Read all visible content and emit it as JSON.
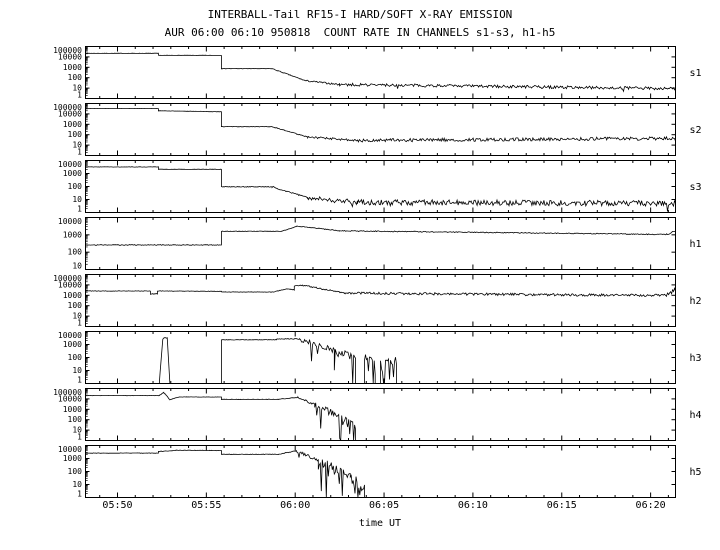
{
  "title": {
    "line1": "INTERBALL-Tail RF15-I HARD/SOFT X-RAY EMISSION",
    "line2": "AUR 06:00 06:10 950818  COUNT RATE IN CHANNELS s1-s3, h1-h5"
  },
  "chart_data": {
    "type": "line",
    "title": "INTERBALL-Tail RF15-I HARD/SOFT X-RAY EMISSION",
    "subtitle": "AUR 06:00 06:10 950818  COUNT RATE IN CHANNELS s1-s3, h1-h5",
    "xlabel": "time UT",
    "y_scale": "log10",
    "colors": {
      "line": "#000000",
      "background": "#ffffff",
      "text": "#000000"
    },
    "x_axis": {
      "min_minutes": 348.2,
      "max_minutes": 381.4,
      "major_tick_minutes": 5,
      "minor_tick_minutes": 1,
      "ticks": [
        {
          "minute": 350,
          "label": "05:50"
        },
        {
          "minute": 355,
          "label": "05:55"
        },
        {
          "minute": 360,
          "label": "06:00"
        },
        {
          "minute": 365,
          "label": "06:05"
        },
        {
          "minute": 370,
          "label": "06:10"
        },
        {
          "minute": 375,
          "label": "06:15"
        },
        {
          "minute": 380,
          "label": "06:20"
        }
      ]
    },
    "segment_format": "[t0_min, t1_min, count_rate_start, count_rate_end, noise_log10, dropout_prob, dropout_depth_log10]",
    "panels": [
      {
        "channel": "s1",
        "ymax_exp": 5,
        "ymin_exp": 0,
        "ylabels": [
          "100000",
          "10000",
          "1000",
          "100",
          "10",
          "1"
        ],
        "segments": [
          [
            348.2,
            352.3,
            22000,
            22000,
            0.015,
            0,
            0
          ],
          [
            352.3,
            355.85,
            14000,
            14000,
            0.015,
            0,
            0
          ],
          [
            355.85,
            358.7,
            750,
            740,
            0.02,
            0,
            0
          ],
          [
            358.7,
            360.6,
            740,
            50,
            0.04,
            0,
            0
          ],
          [
            360.6,
            362.5,
            50,
            22,
            0.08,
            0,
            0
          ],
          [
            362.5,
            381.4,
            22,
            9,
            0.14,
            0.01,
            0.5
          ]
        ]
      },
      {
        "channel": "s2",
        "ymax_exp": 5,
        "ymin_exp": 0,
        "ylabels": [
          "100000",
          "10000",
          "1000",
          "100",
          "10",
          "1"
        ],
        "segments": [
          [
            348.2,
            352.3,
            33000,
            33000,
            0.012,
            0,
            0
          ],
          [
            352.3,
            355.85,
            20000,
            16000,
            0.012,
            0,
            0
          ],
          [
            355.85,
            358.7,
            600,
            590,
            0.02,
            0,
            0
          ],
          [
            358.7,
            360.7,
            590,
            60,
            0.04,
            0,
            0
          ],
          [
            360.7,
            363.5,
            60,
            28,
            0.1,
            0,
            0
          ],
          [
            363.5,
            381.4,
            28,
            45,
            0.16,
            0.01,
            0.4
          ]
        ]
      },
      {
        "channel": "s3",
        "ymax_exp": 4,
        "ymin_exp": 0,
        "ylabels": [
          "10000",
          "1000",
          "100",
          "10",
          "1"
        ],
        "segments": [
          [
            348.2,
            352.3,
            3200,
            3200,
            0.012,
            0,
            0
          ],
          [
            352.3,
            355.85,
            2100,
            2100,
            0.012,
            0,
            0
          ],
          [
            355.85,
            358.7,
            95,
            95,
            0.03,
            0,
            0
          ],
          [
            358.7,
            360.7,
            95,
            14,
            0.06,
            0,
            0
          ],
          [
            360.7,
            363.5,
            14,
            6,
            0.18,
            0.02,
            0.6
          ],
          [
            363.5,
            381.4,
            6,
            5,
            0.22,
            0.03,
            0.8
          ]
        ]
      },
      {
        "channel": "h1",
        "ymax_exp": 4,
        "ymin_exp": 1,
        "ylabels": [
          "10000",
          "1000",
          "100",
          "10"
        ],
        "segments": [
          [
            348.2,
            355.85,
            260,
            260,
            0.02,
            0,
            0
          ],
          [
            355.85,
            359.25,
            1600,
            1600,
            0.015,
            0,
            0
          ],
          [
            359.25,
            360.1,
            1600,
            3200,
            0.02,
            0,
            0
          ],
          [
            360.1,
            362.5,
            3200,
            1700,
            0.02,
            0,
            0
          ],
          [
            362.5,
            380.9,
            1700,
            1050,
            0.025,
            0,
            0
          ],
          [
            380.9,
            381.4,
            1050,
            1700,
            0.05,
            0,
            0
          ]
        ]
      },
      {
        "channel": "h2",
        "ymax_exp": 5,
        "ymin_exp": 0,
        "ylabels": [
          "100000",
          "10000",
          "1000",
          "100",
          "10",
          "1"
        ],
        "segments": [
          [
            348.2,
            351.85,
            2600,
            2600,
            0.02,
            0,
            0
          ],
          [
            351.85,
            352.25,
            1300,
            1400,
            0.03,
            0,
            0
          ],
          [
            352.25,
            355.85,
            2600,
            2400,
            0.02,
            0,
            0
          ],
          [
            355.85,
            358.75,
            2100,
            2050,
            0.02,
            0,
            0
          ],
          [
            358.75,
            359.55,
            2050,
            4200,
            0.03,
            0,
            0
          ],
          [
            359.55,
            359.95,
            4200,
            3400,
            0.03,
            0,
            0
          ],
          [
            359.95,
            360.4,
            8500,
            9500,
            0.05,
            0,
            0
          ],
          [
            360.4,
            362.8,
            9500,
            1600,
            0.07,
            0,
            0
          ],
          [
            362.8,
            380.9,
            1600,
            950,
            0.12,
            0.01,
            0.4
          ],
          [
            380.9,
            381.4,
            950,
            3200,
            0.25,
            0,
            0
          ]
        ]
      },
      {
        "channel": "h3",
        "ymax_exp": 4,
        "ymin_exp": 0,
        "ylabels": [
          "10000",
          "1000",
          "100",
          "10",
          "1"
        ],
        "segments": [
          [
            348.2,
            352.35,
            1,
            1,
            0,
            0,
            0
          ],
          [
            352.35,
            352.55,
            1,
            2600,
            0,
            0,
            0
          ],
          [
            352.55,
            352.8,
            2600,
            3600,
            0.06,
            0,
            0
          ],
          [
            352.8,
            352.95,
            3600,
            1,
            0,
            0,
            0
          ],
          [
            352.95,
            355.85,
            1,
            1,
            0,
            0,
            0
          ],
          [
            355.85,
            358.95,
            2300,
            2300,
            0.02,
            0,
            0
          ],
          [
            358.95,
            360.25,
            2700,
            2700,
            0.03,
            0,
            0
          ],
          [
            360.25,
            362.2,
            2700,
            350,
            0.2,
            0.1,
            1.5
          ],
          [
            362.2,
            363.4,
            350,
            90,
            0.3,
            0.25,
            2.5
          ],
          [
            363.4,
            363.9,
            1,
            1,
            0,
            0,
            0
          ],
          [
            363.9,
            364.5,
            120,
            70,
            0.35,
            0.3,
            2.5
          ],
          [
            364.5,
            364.8,
            1,
            1,
            0,
            0,
            0
          ],
          [
            364.8,
            365.7,
            90,
            50,
            0.35,
            0.3,
            2.5
          ],
          [
            365.7,
            381.4,
            1,
            1,
            0,
            0,
            0
          ]
        ]
      },
      {
        "channel": "h4",
        "ymax_exp": 5,
        "ymin_exp": 0,
        "ylabels": [
          "100000",
          "10000",
          "1000",
          "100",
          "10",
          "1"
        ],
        "segments": [
          [
            348.2,
            352.35,
            21000,
            21000,
            0.012,
            0,
            0
          ],
          [
            352.35,
            352.6,
            21000,
            42000,
            0.03,
            0,
            0
          ],
          [
            352.6,
            352.95,
            42000,
            8500,
            0.04,
            0,
            0
          ],
          [
            352.95,
            353.5,
            8500,
            15500,
            0.02,
            0,
            0
          ],
          [
            353.5,
            355.85,
            15500,
            15000,
            0.012,
            0,
            0
          ],
          [
            355.85,
            359.05,
            9000,
            9000,
            0.02,
            0,
            0
          ],
          [
            359.05,
            360.15,
            9000,
            14000,
            0.03,
            0,
            0
          ],
          [
            360.15,
            361.1,
            14000,
            2800,
            0.1,
            0.05,
            1
          ],
          [
            361.1,
            362.9,
            2800,
            90,
            0.35,
            0.2,
            2.5
          ],
          [
            362.9,
            363.4,
            60,
            25,
            0.45,
            0.3,
            2
          ],
          [
            363.4,
            381.4,
            1,
            1,
            0,
            0,
            0
          ]
        ]
      },
      {
        "channel": "h5",
        "ymax_exp": 4,
        "ymin_exp": 0,
        "ylabels": [
          "10000",
          "1000",
          "100",
          "10",
          "1"
        ],
        "segments": [
          [
            348.2,
            352.3,
            2600,
            2600,
            0.015,
            0,
            0
          ],
          [
            352.3,
            353.3,
            3400,
            4300,
            0.025,
            0,
            0
          ],
          [
            353.3,
            355.85,
            4300,
            4100,
            0.015,
            0,
            0
          ],
          [
            355.85,
            359.05,
            2100,
            2100,
            0.02,
            0,
            0
          ],
          [
            359.05,
            360.05,
            2100,
            3900,
            0.03,
            0,
            0
          ],
          [
            360.05,
            361.3,
            3900,
            700,
            0.12,
            0.05,
            1
          ],
          [
            361.3,
            363.1,
            700,
            35,
            0.4,
            0.25,
            2.5
          ],
          [
            363.1,
            363.9,
            25,
            8,
            0.5,
            0.3,
            1.5
          ],
          [
            363.9,
            381.4,
            1,
            1,
            0,
            0,
            0
          ]
        ]
      }
    ]
  }
}
